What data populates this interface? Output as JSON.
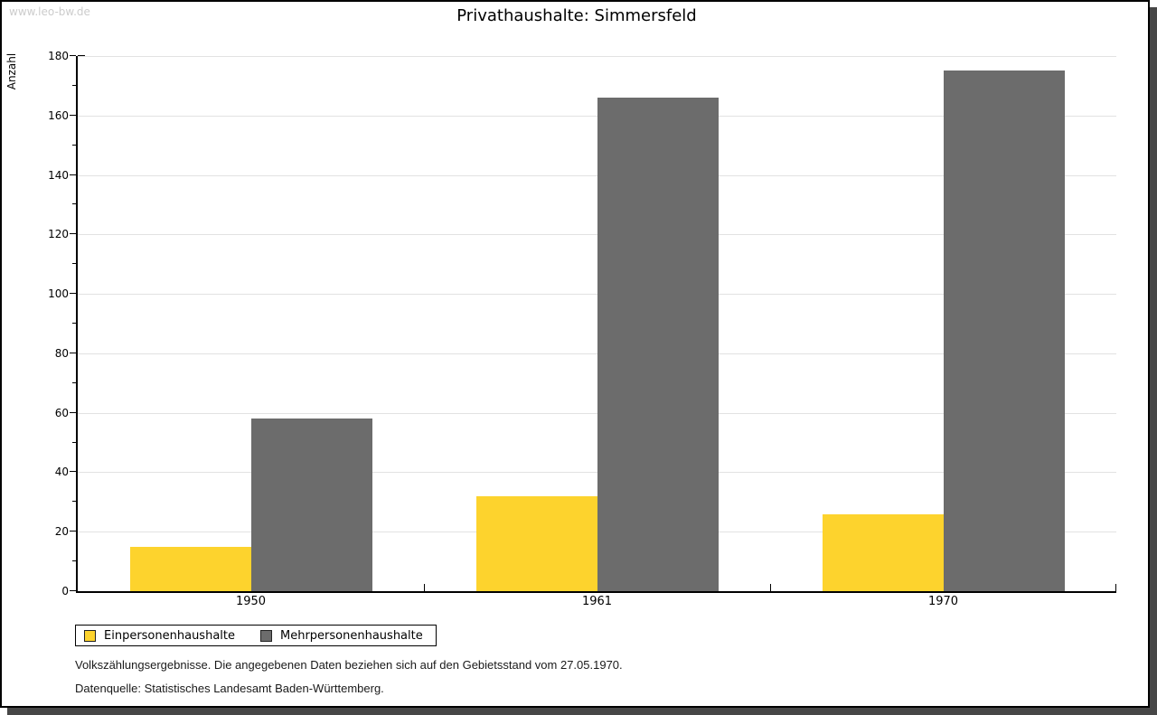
{
  "watermark": "www.leo-bw.de",
  "title": "Privathaushalte: Simmersfeld",
  "chart_data": {
    "type": "bar",
    "title": "Privathaushalte: Simmersfeld",
    "xlabel": "",
    "ylabel": "Anzahl",
    "categories": [
      "1950",
      "1961",
      "1970"
    ],
    "series": [
      {
        "name": "Einpersonenhaushalte",
        "color": "#FDD32D",
        "values": [
          15,
          32,
          26
        ]
      },
      {
        "name": "Mehrpersonenhaushalte",
        "color": "#6C6C6C",
        "values": [
          58,
          166,
          175
        ]
      }
    ],
    "ylim": [
      0,
      180
    ],
    "ytick_step": 20,
    "yminor_step": 10,
    "grid": true,
    "legend_position": "bottom-left"
  },
  "footer": {
    "line1": "Volkszählungsergebnisse. Die angegebenen Daten beziehen sich auf den Gebietsstand vom 27.05.1970.",
    "line2": "Datenquelle: Statistisches Landesamt Baden-Württemberg."
  }
}
